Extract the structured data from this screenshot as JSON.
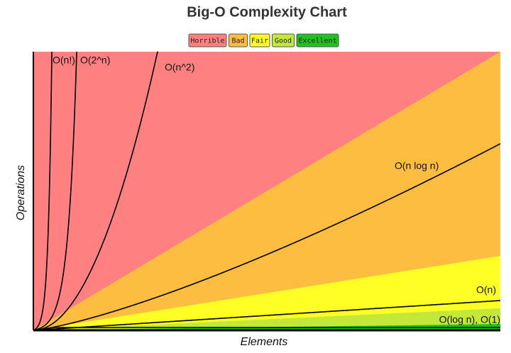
{
  "chart_data": {
    "type": "complexity",
    "title": "Big-O Complexity Chart",
    "xlabel": "Elements",
    "ylabel": "Operations",
    "legend": [
      {
        "name": "Horrible",
        "color": "#ff8080"
      },
      {
        "name": "Bad",
        "color": "#fdbd40"
      },
      {
        "name": "Fair",
        "color": "#ffff26"
      },
      {
        "name": "Good",
        "color": "#c4e83a"
      },
      {
        "name": "Excellent",
        "color": "#1fc21f"
      }
    ],
    "annotations": [
      "O(n!)",
      "O(2^n)",
      "O(n^2)",
      "O(n log n)",
      "O(n)",
      "O(log n), O(1)"
    ]
  }
}
